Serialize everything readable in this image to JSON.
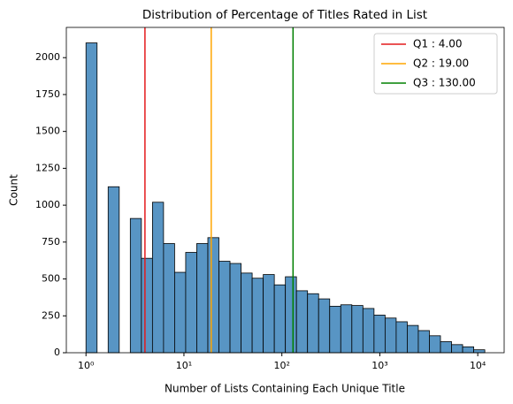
{
  "chart_data": {
    "type": "histogram",
    "title": "Distribution of Percentage of Titles Rated in List",
    "x_label": "Number of Lists Containing Each Unique Title",
    "y_label": "Count",
    "bins": [
      1,
      1.2975,
      1.6836,
      2.1845,
      2.8344,
      3.6777,
      4.7718,
      6.1915,
      8.0336,
      10.42,
      13.52,
      17.55,
      22.77,
      29.54,
      38.33,
      49.74,
      64.53,
      83.73,
      108.6,
      140.9,
      182.8,
      237.2,
      307.8,
      399.4,
      518.2,
      672.4,
      872.4,
      1132,
      1469,
      1906,
      2472,
      3208,
      4162,
      5400,
      7007,
      9091,
      11796
    ],
    "values": [
      2100,
      0,
      1125,
      0,
      910,
      640,
      1020,
      740,
      545,
      680,
      740,
      780,
      620,
      605,
      540,
      505,
      530,
      460,
      515,
      420,
      400,
      365,
      315,
      325,
      320,
      300,
      255,
      235,
      210,
      185,
      150,
      115,
      75,
      55,
      40,
      20
    ],
    "color": "#5895c4",
    "edge_color": "#000000",
    "x_log": true,
    "xlim": [
      0.63,
      18600
    ],
    "xticks": [
      {
        "value": 1,
        "label": "10⁰"
      },
      {
        "value": 10,
        "label": "10¹"
      },
      {
        "value": 100,
        "label": "10²"
      },
      {
        "value": 1000,
        "label": "10³"
      },
      {
        "value": 10000,
        "label": "10⁴"
      }
    ],
    "ylim": [
      0,
      2205
    ],
    "yticks": [
      0,
      250,
      500,
      750,
      1000,
      1250,
      1500,
      1750,
      2000
    ],
    "lines": [
      {
        "name": "Q1 : 4.00",
        "value": 4,
        "color": "#e41a1c"
      },
      {
        "name": "Q2 : 19.00",
        "value": 19,
        "color": "#ffa500"
      },
      {
        "name": "Q3 : 130.00",
        "value": 130,
        "color": "#008000"
      }
    ],
    "legend": "upper right"
  }
}
